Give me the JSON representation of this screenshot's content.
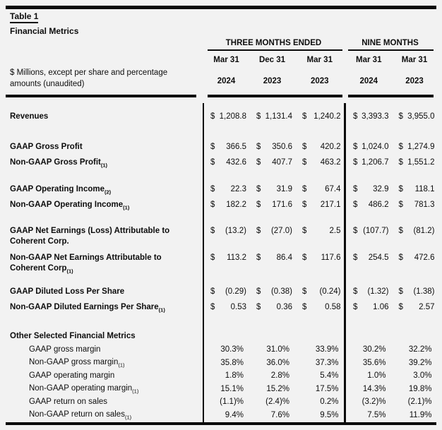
{
  "colors": {
    "background": "#f2f2f2",
    "text": "#0d0d0d",
    "rule": "#0a0a0a"
  },
  "title": {
    "table_label": "Table 1",
    "subtitle": "Financial Metrics"
  },
  "note": {
    "line1": "$ Millions, except per share and percentage",
    "line2": "amounts (unaudited)"
  },
  "currency_symbol": "$",
  "column_groups": [
    {
      "title": "THREE MONTHS ENDED",
      "columns": [
        {
          "month": "Mar 31",
          "year": "2024"
        },
        {
          "month": "Dec 31",
          "year": "2023"
        },
        {
          "month": "Mar 31",
          "year": "2023"
        }
      ]
    },
    {
      "title": "NINE MONTHS",
      "columns": [
        {
          "month": "Mar 31",
          "year": "2024"
        },
        {
          "month": "Mar 31",
          "year": "2023"
        }
      ]
    }
  ],
  "rows": [
    {
      "type": "spacer",
      "size": "a"
    },
    {
      "type": "money",
      "bold": true,
      "label": "Revenues",
      "values": [
        "1,208.8",
        "1,131.4",
        "1,240.2",
        "3,393.3",
        "3,955.0"
      ]
    },
    {
      "type": "spacer",
      "size": "b"
    },
    {
      "type": "money",
      "bold": true,
      "label": "GAAP Gross Profit",
      "values": [
        "366.5",
        "350.6",
        "420.2",
        "1,024.0",
        "1,274.9"
      ]
    },
    {
      "type": "money",
      "bold": true,
      "label": "Non-GAAP Gross Profit",
      "sub": "(1)",
      "values": [
        "432.6",
        "407.7",
        "463.2",
        "1,206.7",
        "1,551.2"
      ]
    },
    {
      "type": "spacer",
      "size": "c"
    },
    {
      "type": "money",
      "bold": true,
      "label": "GAAP Operating Income",
      "sub": "(2)",
      "values": [
        "22.3",
        "31.9",
        "67.4",
        "32.9",
        "118.1"
      ]
    },
    {
      "type": "money",
      "bold": true,
      "label": "Non-GAAP Operating Income",
      "sub": "(1)",
      "values": [
        "182.2",
        "171.6",
        "217.1",
        "486.2",
        "781.3"
      ]
    },
    {
      "type": "spacer",
      "size": "c"
    },
    {
      "type": "money",
      "bold": true,
      "label": "GAAP Net Earnings (Loss) Attributable to",
      "label2": "Coherent Corp.",
      "values": [
        "(13.2)",
        "(27.0)",
        "2.5",
        "(107.7)",
        "(81.2)"
      ]
    },
    {
      "type": "money",
      "bold": true,
      "label": "Non-GAAP Net Earnings Attributable to",
      "label2": "Coherent Corp",
      "sub": "(1)",
      "values": [
        "113.2",
        "86.4",
        "117.6",
        "254.5",
        "472.6"
      ]
    },
    {
      "type": "spacer",
      "size": "d"
    },
    {
      "type": "money",
      "bold": true,
      "label": "GAAP Diluted Loss Per Share",
      "values": [
        "(0.29)",
        "(0.38)",
        "(0.24)",
        "(1.32)",
        "(1.38)"
      ]
    },
    {
      "type": "money",
      "bold": true,
      "label": "Non-GAAP Diluted Earnings Per Share",
      "sub": "(1)",
      "values": [
        "0.53",
        "0.36",
        "0.58",
        "1.06",
        "2.57"
      ]
    },
    {
      "type": "spacer",
      "size": "b"
    },
    {
      "type": "section",
      "bold": true,
      "label": "Other Selected Financial Metrics"
    },
    {
      "type": "percent",
      "indent": true,
      "label": "GAAP gross margin",
      "values": [
        "30.3%",
        "31.0%",
        "33.9%",
        "30.2%",
        "32.2%"
      ]
    },
    {
      "type": "percent",
      "indent": true,
      "label": "Non-GAAP gross margin",
      "sub": "(1)",
      "values": [
        "35.8%",
        "36.0%",
        "37.3%",
        "35.6%",
        "39.2%"
      ]
    },
    {
      "type": "percent",
      "indent": true,
      "label": "GAAP operating margin",
      "values": [
        "1.8%",
        "2.8%",
        "5.4%",
        "1.0%",
        "3.0%"
      ]
    },
    {
      "type": "percent",
      "indent": true,
      "label": "Non-GAAP operating margin",
      "sub": "(1)",
      "values": [
        "15.1%",
        "15.2%",
        "17.5%",
        "14.3%",
        "19.8%"
      ]
    },
    {
      "type": "percent",
      "indent": true,
      "label": "GAAP return on sales",
      "values": [
        "(1.1)%",
        "(2.4)%",
        "0.2%",
        "(3.2)%",
        "(2.1)%"
      ]
    },
    {
      "type": "percent",
      "indent": true,
      "label": "Non-GAAP return on sales",
      "sub": "(1)",
      "values": [
        "9.4%",
        "7.6%",
        "9.5%",
        "7.5%",
        "11.9%"
      ]
    }
  ]
}
